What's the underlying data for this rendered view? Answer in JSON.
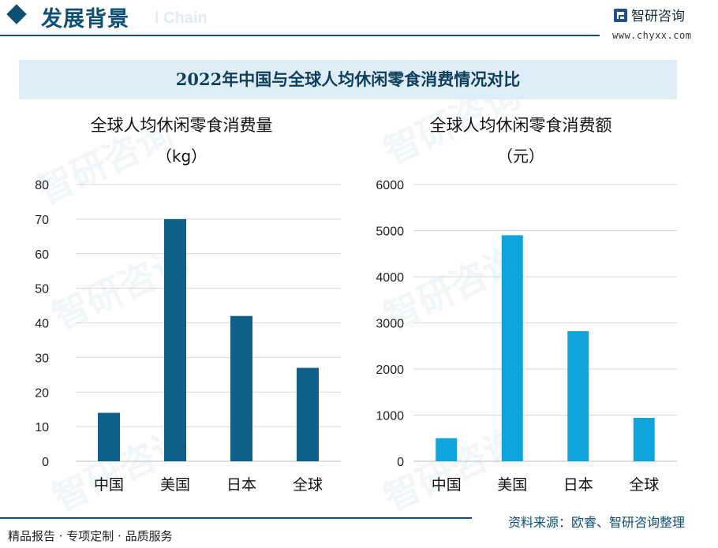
{
  "header": {
    "section_title": "发展背景",
    "ghost_text": "l Chain",
    "logo_name": "智研咨询",
    "logo_url": "www.chyxx.com"
  },
  "main_title": "2022年中国与全球人均休闲零食消费情况对比",
  "watermark_text": "智研咨询",
  "chart_data": [
    {
      "type": "bar",
      "title": "全球人均休闲零食消费量",
      "unit": "（kg）",
      "categories": [
        "中国",
        "美国",
        "日本",
        "全球"
      ],
      "values": [
        14,
        70,
        42,
        27
      ],
      "ylim": [
        0,
        80
      ],
      "yticks": [
        0,
        10,
        20,
        30,
        40,
        50,
        60,
        70,
        80
      ],
      "grid": true,
      "color": "#0d6188"
    },
    {
      "type": "bar",
      "title": "全球人均休闲零食消费额",
      "unit": "（元）",
      "categories": [
        "中国",
        "美国",
        "日本",
        "全球"
      ],
      "values": [
        500,
        4900,
        2820,
        940
      ],
      "ylim": [
        0,
        6000
      ],
      "yticks": [
        0,
        1000,
        2000,
        3000,
        4000,
        5000,
        6000
      ],
      "grid": true,
      "color": "#10a4dc"
    }
  ],
  "footer": {
    "source": "资料来源：欧睿、智研咨询整理",
    "slogan": "精品报告 · 专项定制 · 品质服务"
  }
}
